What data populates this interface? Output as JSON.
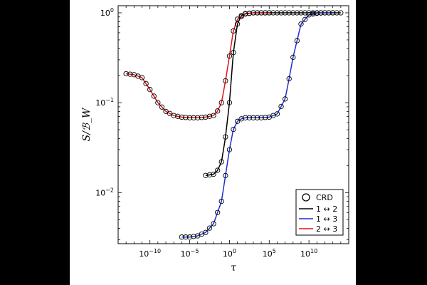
{
  "chart_data": {
    "type": "line",
    "xlabel": "τ",
    "ylabel": "S/ℬ_W",
    "x_scale": "log",
    "y_scale": "log",
    "xlim": [
      1e-14,
      1000000000000000.0
    ],
    "ylim": [
      0.0027,
      1.2
    ],
    "x_ticks": [
      {
        "value": 1e-10,
        "base": "10",
        "exp": "−10"
      },
      {
        "value": 1e-05,
        "base": "10",
        "exp": "−5"
      },
      {
        "value": 1,
        "base": "10",
        "exp": "0"
      },
      {
        "value": 100000.0,
        "base": "10",
        "exp": "5"
      },
      {
        "value": 10000000000.0,
        "base": "10",
        "exp": "10"
      }
    ],
    "y_ticks": [
      {
        "value": 0.01,
        "base": "10",
        "exp": "−2"
      },
      {
        "value": 0.1,
        "base": "10",
        "exp": "−1"
      },
      {
        "value": 1,
        "base": "10",
        "exp": "0"
      }
    ],
    "legend": {
      "position": "lower-right",
      "marker_entry": "CRD",
      "entries": [
        "1 ↔ 2",
        "1 ↔ 3",
        "2 ↔ 3"
      ]
    },
    "series": [
      {
        "name": "1 ↔ 2",
        "color": "#000000",
        "x": [
          0.001,
          0.01,
          0.03,
          0.1,
          0.3,
          1,
          3,
          10,
          30,
          100,
          1000,
          10000.0,
          100000.0,
          10000000.0,
          1000000000.0,
          100000000000.0,
          10000000000000.0,
          100000000000000.0
        ],
        "y": [
          0.0155,
          0.016,
          0.0175,
          0.022,
          0.04,
          0.1,
          0.35,
          0.75,
          0.93,
          0.98,
          1.0,
          1.0,
          1.0,
          1.0,
          1.0,
          1.0,
          1.0,
          1.0
        ]
      },
      {
        "name": "1 ↔ 3",
        "color": "#1f2fd0",
        "x": [
          1e-06,
          1e-05,
          0.0001,
          0.001,
          0.01,
          0.1,
          0.3,
          1,
          3,
          10,
          30,
          100,
          1000,
          10000.0,
          100000.0,
          1000000.0,
          10000000.0,
          30000000.0,
          100000000.0,
          1000000000.0,
          10000000000.0,
          100000000000.0,
          1000000000000.0,
          10000000000000.0
        ],
        "y": [
          0.0032,
          0.0032,
          0.0033,
          0.0036,
          0.0045,
          0.008,
          0.015,
          0.03,
          0.05,
          0.062,
          0.066,
          0.068,
          0.068,
          0.068,
          0.069,
          0.075,
          0.11,
          0.18,
          0.32,
          0.75,
          0.95,
          0.99,
          1.0,
          1.0
        ]
      },
      {
        "name": "2 ↔ 3",
        "color": "#e01515",
        "x": [
          1e-13,
          1e-12,
          1e-11,
          1e-10,
          1e-09,
          1e-08,
          1e-07,
          1e-06,
          1e-05,
          0.0001,
          0.001,
          0.01,
          0.03,
          0.1,
          0.3,
          1,
          3,
          10,
          100,
          1000,
          10000.0,
          100000.0
        ],
        "y": [
          0.21,
          0.205,
          0.19,
          0.14,
          0.1,
          0.08,
          0.072,
          0.069,
          0.068,
          0.068,
          0.069,
          0.072,
          0.08,
          0.1,
          0.17,
          0.33,
          0.62,
          0.85,
          0.97,
          1.0,
          1.0,
          1.0
        ]
      }
    ]
  }
}
